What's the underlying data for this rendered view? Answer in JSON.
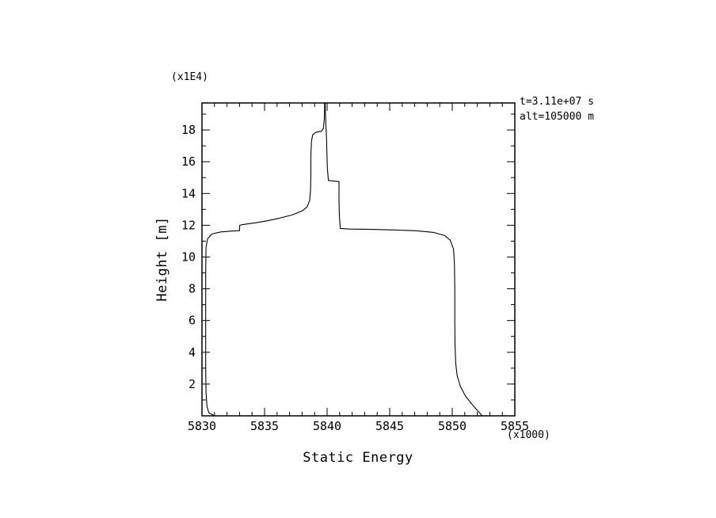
{
  "chart_data": {
    "type": "line",
    "title": "",
    "xlabel": "Static Energy",
    "ylabel": "Height [m]",
    "x_scale_note": "(x1000)",
    "y_scale_note": "(x1E4)",
    "annotations": [
      "t=3.11e+07 s",
      "alt=105000 m"
    ],
    "xlim": [
      5830,
      5855
    ],
    "ylim": [
      0,
      19.7
    ],
    "x_major_ticks": [
      5830,
      5835,
      5840,
      5845,
      5850,
      5855
    ],
    "x_minor_step": 1,
    "y_major_ticks": [
      2,
      4,
      6,
      8,
      10,
      12,
      14,
      16,
      18
    ],
    "y_minor_step": 1,
    "grid": false,
    "legend": "none",
    "line_color": "#000000",
    "series": [
      {
        "name": "left-profile",
        "points": [
          [
            5831.0,
            0.0
          ],
          [
            5830.55,
            0.2
          ],
          [
            5830.4,
            0.6
          ],
          [
            5830.32,
            1.5
          ],
          [
            5830.3,
            3.0
          ],
          [
            5830.3,
            6.0
          ],
          [
            5830.3,
            9.0
          ],
          [
            5830.32,
            10.6
          ],
          [
            5830.45,
            11.15
          ],
          [
            5830.8,
            11.45
          ],
          [
            5831.5,
            11.58
          ],
          [
            5832.3,
            11.63
          ],
          [
            5833.0,
            11.66
          ],
          [
            5833.02,
            12.0
          ],
          [
            5833.3,
            12.05
          ],
          [
            5834.2,
            12.15
          ],
          [
            5835.2,
            12.28
          ],
          [
            5836.2,
            12.45
          ],
          [
            5837.2,
            12.65
          ],
          [
            5838.0,
            12.9
          ],
          [
            5838.4,
            13.15
          ],
          [
            5838.6,
            13.55
          ],
          [
            5838.68,
            14.2
          ],
          [
            5838.7,
            15.2
          ],
          [
            5838.7,
            16.4
          ],
          [
            5838.75,
            17.3
          ],
          [
            5838.85,
            17.7
          ],
          [
            5839.1,
            17.85
          ],
          [
            5839.55,
            17.92
          ],
          [
            5839.7,
            18.1
          ],
          [
            5839.78,
            18.7
          ],
          [
            5839.8,
            19.4
          ],
          [
            5839.8,
            19.7
          ]
        ]
      },
      {
        "name": "right-profile",
        "points": [
          [
            5852.4,
            0.0
          ],
          [
            5852.05,
            0.3
          ],
          [
            5851.55,
            0.75
          ],
          [
            5851.05,
            1.25
          ],
          [
            5850.65,
            1.85
          ],
          [
            5850.4,
            2.5
          ],
          [
            5850.28,
            3.3
          ],
          [
            5850.22,
            4.5
          ],
          [
            5850.2,
            6.0
          ],
          [
            5850.2,
            8.0
          ],
          [
            5850.18,
            9.5
          ],
          [
            5850.1,
            10.5
          ],
          [
            5849.85,
            11.05
          ],
          [
            5849.4,
            11.35
          ],
          [
            5848.5,
            11.55
          ],
          [
            5847.2,
            11.65
          ],
          [
            5845.5,
            11.7
          ],
          [
            5843.5,
            11.74
          ],
          [
            5841.8,
            11.76
          ],
          [
            5841.05,
            11.8
          ],
          [
            5840.98,
            12.6
          ],
          [
            5840.95,
            13.6
          ],
          [
            5840.95,
            14.75
          ],
          [
            5840.1,
            14.82
          ],
          [
            5840.02,
            15.6
          ],
          [
            5839.98,
            16.6
          ],
          [
            5839.95,
            17.6
          ],
          [
            5839.9,
            18.4
          ],
          [
            5839.87,
            19.1
          ],
          [
            5839.85,
            19.7
          ]
        ]
      }
    ]
  }
}
